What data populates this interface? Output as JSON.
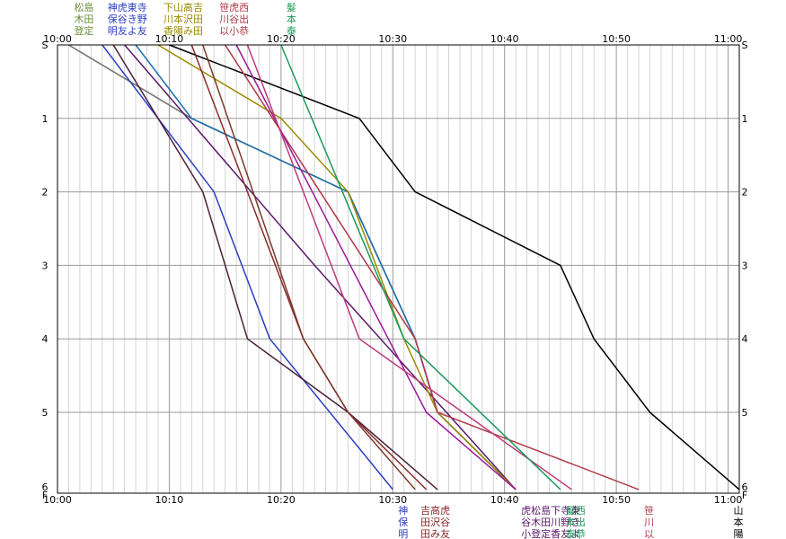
{
  "chart_data": {
    "type": "line",
    "x_unit": "time",
    "x_range": [
      "10:00",
      "11:01"
    ],
    "x_ticks": [
      "10:00",
      "10:10",
      "10:20",
      "10:30",
      "10:40",
      "10:50",
      "11:00"
    ],
    "x_minor_step_minutes": 1,
    "y_axis": "station",
    "y_reversed": true,
    "y_ticks": [
      {
        "label": "S",
        "pos": 0
      },
      {
        "label": "1",
        "pos": 1
      },
      {
        "label": "2",
        "pos": 2
      },
      {
        "label": "3",
        "pos": 3
      },
      {
        "label": "4",
        "pos": 4
      },
      {
        "label": "5",
        "pos": 5
      },
      {
        "label": "6",
        "pos": 6
      },
      {
        "label": "F",
        "pos": 6.1
      }
    ],
    "grid": true,
    "series": [
      {
        "name": "松木登",
        "color": "#6a8f3a",
        "points": [
          [
            "10:01",
            0
          ],
          [
            "10:12",
            1
          ],
          [
            "10:26",
            2
          ],
          [
            "10:32",
            4
          ],
          [
            "10:34",
            5
          ],
          [
            "10:41",
            6.05
          ]
        ]
      },
      {
        "name": "島田定",
        "color": "#7a7a7a",
        "points": [
          [
            "10:01",
            0
          ],
          [
            "10:12",
            1
          ],
          [
            "10:26",
            2
          ],
          [
            "10:32",
            4
          ],
          [
            "10:34",
            5
          ],
          [
            "10:41",
            6.05
          ]
        ]
      },
      {
        "name": "神保明",
        "color": "#2a3fbf",
        "points": [
          [
            "10:04",
            0
          ],
          [
            "10:14",
            2
          ],
          [
            "10:19",
            4
          ],
          [
            "10:30",
            6.05
          ]
        ]
      },
      {
        "name": "虎谷友",
        "color": "#4b1f3a",
        "points": [
          [
            "10:05",
            0
          ],
          [
            "10:13",
            2
          ],
          [
            "10:17",
            4
          ],
          [
            "10:26",
            5
          ],
          [
            "10:34",
            6.05
          ]
        ]
      },
      {
        "name": "東きよ",
        "color": "#5a1a6a",
        "points": [
          [
            "10:06",
            0
          ],
          [
            "10:23",
            3
          ],
          [
            "10:41",
            6.05
          ]
        ]
      },
      {
        "name": "寺野友",
        "color": "#1a6fb0",
        "points": [
          [
            "10:07",
            0
          ],
          [
            "10:12",
            1
          ],
          [
            "10:26",
            2
          ],
          [
            "10:32",
            4
          ],
          [
            "10:34",
            5
          ],
          [
            "10:41",
            6.05
          ]
        ]
      },
      {
        "name": "下川香",
        "color": "#9a8a00",
        "points": [
          [
            "10:09",
            0
          ],
          [
            "10:20",
            1
          ],
          [
            "10:26",
            2
          ],
          [
            "10:31",
            4
          ],
          [
            "10:34",
            5
          ],
          [
            "10:41",
            6.05
          ]
        ]
      },
      {
        "name": "山本陽",
        "color": "#000000",
        "points": [
          [
            "10:10",
            0
          ],
          [
            "10:27",
            1
          ],
          [
            "10:32",
            2
          ],
          [
            "10:45",
            3
          ],
          [
            "10:48",
            4
          ],
          [
            "10:53",
            5
          ],
          [
            "11:01",
            6.05
          ]
        ]
      },
      {
        "name": "高沢み",
        "color": "#8b2a2a",
        "points": [
          [
            "10:12",
            0
          ],
          [
            "10:22",
            4
          ],
          [
            "10:26",
            5
          ],
          [
            "10:33",
            6.05
          ]
        ]
      },
      {
        "name": "吉田田",
        "color": "#7a3a2a",
        "points": [
          [
            "10:13",
            0
          ],
          [
            "10:22",
            4
          ],
          [
            "10:26",
            5
          ],
          [
            "10:32",
            6.05
          ]
        ]
      },
      {
        "name": "笹川以",
        "color": "#b03a4a",
        "points": [
          [
            "10:15",
            0
          ],
          [
            "10:32",
            4
          ],
          [
            "10:34",
            5
          ],
          [
            "10:52",
            6.05
          ]
        ]
      },
      {
        "name": "虎谷小",
        "color": "#9a1a9a",
        "points": [
          [
            "10:16",
            0
          ],
          [
            "10:33",
            5
          ],
          [
            "10:41",
            6.05
          ]
        ]
      },
      {
        "name": "西出恭",
        "color": "#c03a7a",
        "points": [
          [
            "10:17",
            0
          ],
          [
            "10:27",
            4
          ],
          [
            "10:46",
            6.05
          ]
        ]
      },
      {
        "name": "髮本泰",
        "color": "#1a9a5a",
        "points": [
          [
            "10:20",
            0
          ],
          [
            "10:31",
            4
          ],
          [
            "10:45",
            6.05
          ]
        ]
      }
    ]
  },
  "top_labels": [
    {
      "time": "10:01",
      "lines": [
        {
          "text": "松島",
          "color": "#6a8f3a"
        },
        {
          "text": "木田",
          "color": "#6a8f3a"
        },
        {
          "text": "登定",
          "color": "#6a8f3a"
        }
      ]
    },
    {
      "time": "10:04",
      "lines": [
        {
          "text": "神虎東寺",
          "color": "#2a3fbf"
        },
        {
          "text": "保谷き野",
          "color": "#2a3fbf"
        },
        {
          "text": "明友よ友",
          "color": "#2a3fbf"
        }
      ]
    },
    {
      "time": "10:09",
      "lines": [
        {
          "text": "下山高吉",
          "color": "#9a8a00"
        },
        {
          "text": "川本沢田",
          "color": "#9a8a00"
        },
        {
          "text": "香陽み田",
          "color": "#9a8a00"
        }
      ]
    },
    {
      "time": "10:14",
      "lines": [
        {
          "text": "笹虎西",
          "color": "#b03a4a"
        },
        {
          "text": "川谷出",
          "color": "#b03a4a"
        },
        {
          "text": "以小恭",
          "color": "#b03a4a"
        }
      ]
    },
    {
      "time": "10:20",
      "lines": [
        {
          "text": "髮",
          "color": "#1a9a5a"
        },
        {
          "text": "本",
          "color": "#1a9a5a"
        },
        {
          "text": "泰",
          "color": "#1a9a5a"
        }
      ]
    }
  ],
  "bottom_labels": [
    {
      "time": "10:30",
      "lines": [
        {
          "text": "神",
          "color": "#2a3fbf"
        },
        {
          "text": "保",
          "color": "#2a3fbf"
        },
        {
          "text": "明",
          "color": "#2a3fbf"
        }
      ]
    },
    {
      "time": "10:32",
      "lines": [
        {
          "text": "吉高虎",
          "color": "#8b2a2a"
        },
        {
          "text": "田沢谷",
          "color": "#8b2a2a"
        },
        {
          "text": "田み友",
          "color": "#8b2a2a"
        }
      ]
    },
    {
      "time": "10:41",
      "lines": [
        {
          "text": "虎松島下寺東",
          "color": "#5a1a6a"
        },
        {
          "text": "谷木田川野き",
          "color": "#5a1a6a"
        },
        {
          "text": "小登定香友よ",
          "color": "#5a1a6a"
        }
      ]
    },
    {
      "time": "10:45",
      "lines": [
        {
          "text": "髮西",
          "color": "#1a9a5a"
        },
        {
          "text": "本出",
          "color": "#1a9a5a"
        },
        {
          "text": "泰恭",
          "color": "#1a9a5a"
        }
      ]
    },
    {
      "time": "10:52",
      "lines": [
        {
          "text": "笹",
          "color": "#b03a4a"
        },
        {
          "text": "川",
          "color": "#b03a4a"
        },
        {
          "text": "以",
          "color": "#b03a4a"
        }
      ]
    },
    {
      "time": "11:00",
      "lines": [
        {
          "text": "山",
          "color": "#000000"
        },
        {
          "text": "本",
          "color": "#000000"
        },
        {
          "text": "陽",
          "color": "#000000"
        }
      ]
    }
  ]
}
